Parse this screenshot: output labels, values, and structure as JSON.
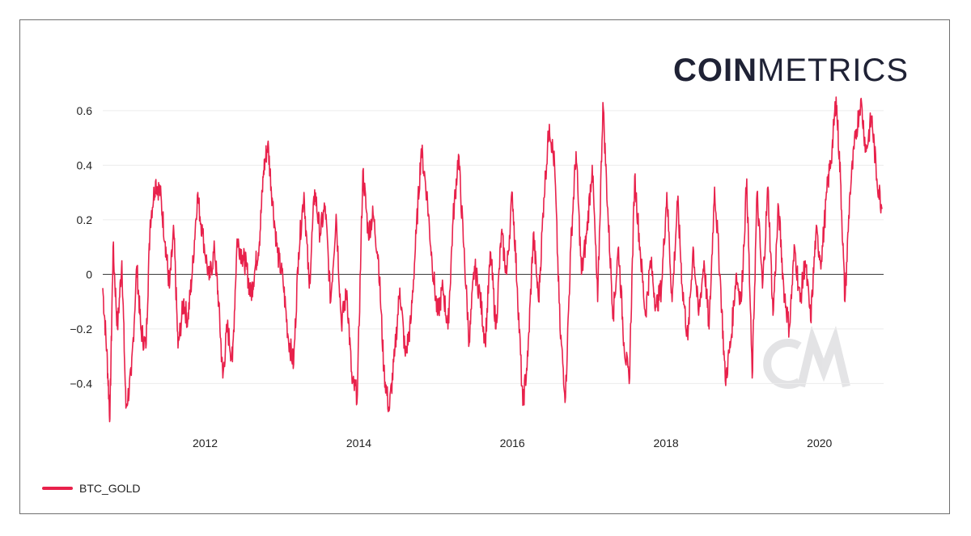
{
  "brand": {
    "bold": "COIN",
    "light": "METRICS"
  },
  "chart_data": {
    "type": "line",
    "title": "",
    "xlabel": "",
    "ylabel": "",
    "xlim": [
      "2010-09-01",
      "2020-11-01"
    ],
    "ylim": [
      -0.55,
      0.65
    ],
    "grid": true,
    "legend_placement": "bottom-left",
    "y_ticks": [
      -0.4,
      -0.2,
      0,
      0.2,
      0.4,
      0.6
    ],
    "y_tick_labels": [
      "−0.4",
      "−0.2",
      "0",
      "0.2",
      "0.4",
      "0.6"
    ],
    "x_ticks": [
      "2012",
      "2014",
      "2016",
      "2018",
      "2020"
    ],
    "series": [
      {
        "name": "BTC_GOLD",
        "color": "#e8214b",
        "points": [
          [
            "2010-09-01",
            -0.05
          ],
          [
            "2010-09-20",
            -0.28
          ],
          [
            "2010-10-05",
            -0.53
          ],
          [
            "2010-10-20",
            0.1
          ],
          [
            "2010-11-10",
            -0.2
          ],
          [
            "2010-12-01",
            0.05
          ],
          [
            "2010-12-20",
            -0.49
          ],
          [
            "2011-01-15",
            -0.37
          ],
          [
            "2011-02-10",
            0.03
          ],
          [
            "2011-03-01",
            -0.2
          ],
          [
            "2011-03-25",
            -0.27
          ],
          [
            "2011-04-15",
            0.2
          ],
          [
            "2011-05-10",
            0.34
          ],
          [
            "2011-06-01",
            0.3
          ],
          [
            "2011-06-25",
            0.12
          ],
          [
            "2011-07-15",
            -0.05
          ],
          [
            "2011-08-05",
            0.16
          ],
          [
            "2011-08-25",
            -0.27
          ],
          [
            "2011-09-20",
            -0.1
          ],
          [
            "2011-10-10",
            -0.17
          ],
          [
            "2011-11-01",
            0.01
          ],
          [
            "2011-11-25",
            0.29
          ],
          [
            "2011-12-20",
            0.15
          ],
          [
            "2012-01-20",
            -0.02
          ],
          [
            "2012-02-15",
            0.09
          ],
          [
            "2012-03-05",
            -0.1
          ],
          [
            "2012-03-25",
            -0.38
          ],
          [
            "2012-04-15",
            -0.19
          ],
          [
            "2012-05-10",
            -0.32
          ],
          [
            "2012-06-01",
            0.13
          ],
          [
            "2012-06-25",
            0.07
          ],
          [
            "2012-07-15",
            0.03
          ],
          [
            "2012-08-05",
            -0.08
          ],
          [
            "2012-08-25",
            0.02
          ],
          [
            "2012-09-15",
            0.12
          ],
          [
            "2012-10-05",
            0.38
          ],
          [
            "2012-10-25",
            0.48
          ],
          [
            "2012-11-15",
            0.28
          ],
          [
            "2012-12-10",
            0.08
          ],
          [
            "2013-01-05",
            -0.02
          ],
          [
            "2013-01-30",
            -0.23
          ],
          [
            "2013-02-25",
            -0.33
          ],
          [
            "2013-03-20",
            0.08
          ],
          [
            "2013-04-15",
            0.3
          ],
          [
            "2013-05-10",
            -0.05
          ],
          [
            "2013-06-05",
            0.31
          ],
          [
            "2013-06-30",
            0.15
          ],
          [
            "2013-07-25",
            0.25
          ],
          [
            "2013-08-20",
            -0.1
          ],
          [
            "2013-09-15",
            0.22
          ],
          [
            "2013-10-10",
            -0.18
          ],
          [
            "2013-11-05",
            -0.06
          ],
          [
            "2013-11-30",
            -0.4
          ],
          [
            "2013-12-25",
            -0.44
          ],
          [
            "2014-01-20",
            0.38
          ],
          [
            "2014-02-15",
            0.15
          ],
          [
            "2014-03-10",
            0.22
          ],
          [
            "2014-04-05",
            0.05
          ],
          [
            "2014-04-30",
            -0.35
          ],
          [
            "2014-05-25",
            -0.5
          ],
          [
            "2014-06-20",
            -0.3
          ],
          [
            "2014-07-15",
            -0.05
          ],
          [
            "2014-08-10",
            -0.3
          ],
          [
            "2014-09-05",
            -0.18
          ],
          [
            "2014-10-01",
            0.15
          ],
          [
            "2014-10-25",
            0.46
          ],
          [
            "2014-11-20",
            0.3
          ],
          [
            "2014-12-15",
            0.05
          ],
          [
            "2015-01-10",
            -0.15
          ],
          [
            "2015-02-05",
            -0.05
          ],
          [
            "2015-03-01",
            -0.2
          ],
          [
            "2015-03-25",
            0.2
          ],
          [
            "2015-04-20",
            0.44
          ],
          [
            "2015-05-15",
            0.1
          ],
          [
            "2015-06-10",
            -0.25
          ],
          [
            "2015-07-05",
            0.03
          ],
          [
            "2015-08-01",
            -0.08
          ],
          [
            "2015-08-25",
            -0.25
          ],
          [
            "2015-09-20",
            0.08
          ],
          [
            "2015-10-15",
            -0.2
          ],
          [
            "2015-11-10",
            0.15
          ],
          [
            "2015-12-05",
            0.0
          ],
          [
            "2016-01-01",
            0.3
          ],
          [
            "2016-01-25",
            -0.05
          ],
          [
            "2016-02-20",
            -0.48
          ],
          [
            "2016-03-15",
            -0.3
          ],
          [
            "2016-04-10",
            0.15
          ],
          [
            "2016-05-05",
            -0.1
          ],
          [
            "2016-05-30",
            0.28
          ],
          [
            "2016-06-25",
            0.55
          ],
          [
            "2016-07-20",
            0.4
          ],
          [
            "2016-08-15",
            -0.2
          ],
          [
            "2016-09-10",
            -0.45
          ],
          [
            "2016-10-05",
            0.1
          ],
          [
            "2016-10-30",
            0.45
          ],
          [
            "2016-11-25",
            0.0
          ],
          [
            "2016-12-20",
            0.15
          ],
          [
            "2017-01-15",
            0.4
          ],
          [
            "2017-02-10",
            -0.1
          ],
          [
            "2017-03-07",
            0.63
          ],
          [
            "2017-04-01",
            0.2
          ],
          [
            "2017-04-25",
            -0.15
          ],
          [
            "2017-05-20",
            0.1
          ],
          [
            "2017-06-15",
            -0.25
          ],
          [
            "2017-07-10",
            -0.4
          ],
          [
            "2017-08-05",
            0.36
          ],
          [
            "2017-08-30",
            0.1
          ],
          [
            "2017-09-25",
            -0.15
          ],
          [
            "2017-10-20",
            0.05
          ],
          [
            "2017-11-15",
            -0.12
          ],
          [
            "2017-12-10",
            -0.05
          ],
          [
            "2018-01-05",
            0.3
          ],
          [
            "2018-01-30",
            -0.1
          ],
          [
            "2018-02-25",
            0.27
          ],
          [
            "2018-03-20",
            -0.05
          ],
          [
            "2018-04-15",
            -0.24
          ],
          [
            "2018-05-10",
            0.1
          ],
          [
            "2018-06-05",
            -0.15
          ],
          [
            "2018-07-01",
            0.05
          ],
          [
            "2018-07-25",
            -0.2
          ],
          [
            "2018-08-20",
            0.32
          ],
          [
            "2018-09-15",
            0.0
          ],
          [
            "2018-10-10",
            -0.39
          ],
          [
            "2018-11-05",
            -0.25
          ],
          [
            "2018-11-30",
            0.0
          ],
          [
            "2018-12-25",
            -0.1
          ],
          [
            "2019-01-20",
            0.35
          ],
          [
            "2019-02-15",
            -0.38
          ],
          [
            "2019-03-10",
            0.3
          ],
          [
            "2019-04-05",
            -0.05
          ],
          [
            "2019-05-01",
            0.32
          ],
          [
            "2019-05-25",
            -0.15
          ],
          [
            "2019-06-20",
            0.25
          ],
          [
            "2019-07-15",
            -0.05
          ],
          [
            "2019-08-10",
            -0.2
          ],
          [
            "2019-09-05",
            0.1
          ],
          [
            "2019-10-01",
            -0.1
          ],
          [
            "2019-10-25",
            0.05
          ],
          [
            "2019-11-20",
            -0.17
          ],
          [
            "2019-12-15",
            0.15
          ],
          [
            "2020-01-10",
            0.05
          ],
          [
            "2020-02-05",
            0.3
          ],
          [
            "2020-03-01",
            0.46
          ],
          [
            "2020-03-20",
            0.65
          ],
          [
            "2020-04-10",
            0.35
          ],
          [
            "2020-05-01",
            -0.1
          ],
          [
            "2020-05-25",
            0.3
          ],
          [
            "2020-06-20",
            0.5
          ],
          [
            "2020-07-15",
            0.64
          ],
          [
            "2020-08-10",
            0.45
          ],
          [
            "2020-09-05",
            0.58
          ],
          [
            "2020-09-30",
            0.35
          ],
          [
            "2020-10-25",
            0.24
          ]
        ]
      }
    ]
  }
}
